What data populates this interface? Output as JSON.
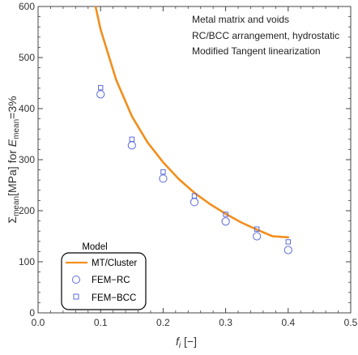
{
  "chart_data": {
    "type": "scatter",
    "xlim": [
      0,
      0.5
    ],
    "ylim": [
      0,
      600
    ],
    "x_ticks": [
      "0.0",
      "0.1",
      "0.2",
      "0.3",
      "0.4",
      "0.5"
    ],
    "y_ticks": [
      "0",
      "100",
      "200",
      "300",
      "400",
      "500",
      "600"
    ],
    "xlabel": {
      "main": "f",
      "sub": "i",
      "rest": " [−]"
    },
    "ylabel": {
      "sigma": "Σ",
      "sigma_sub": "mean",
      "mid": "[MPa] for ",
      "E": "E",
      "E_sub": "mean",
      "rest": "=3%"
    },
    "annotations": [
      "Metal matrix and voids",
      "RC/BCC arrangement, hydrostatic",
      "Modified Tangent linearization"
    ],
    "legend": {
      "title": "Model",
      "placement": "bottom-left",
      "entries": [
        "MT/Cluster",
        "FEM−RC",
        "FEM−BCC"
      ]
    },
    "colors": {
      "curve": "#f28e1c",
      "markers": "#5b6bd8",
      "frame": "#444444"
    },
    "series": [
      {
        "name": "MT/Cluster",
        "style": "line",
        "x": [
          0.092,
          0.1,
          0.125,
          0.15,
          0.175,
          0.2,
          0.225,
          0.25,
          0.275,
          0.3,
          0.325,
          0.35,
          0.375,
          0.4
        ],
        "values": [
          600,
          555,
          456,
          385,
          334,
          295,
          262,
          235,
          213,
          194,
          177,
          163,
          150,
          148
        ]
      },
      {
        "name": "FEM−RC",
        "style": "circle",
        "x": [
          0.1,
          0.15,
          0.2,
          0.25,
          0.3,
          0.35,
          0.4
        ],
        "values": [
          428,
          328,
          263,
          217,
          179,
          150,
          123
        ]
      },
      {
        "name": "FEM−BCC",
        "style": "square",
        "x": [
          0.1,
          0.15,
          0.2,
          0.25,
          0.3,
          0.35,
          0.4
        ],
        "values": [
          441,
          340,
          276,
          229,
          193,
          164,
          139
        ]
      }
    ]
  }
}
